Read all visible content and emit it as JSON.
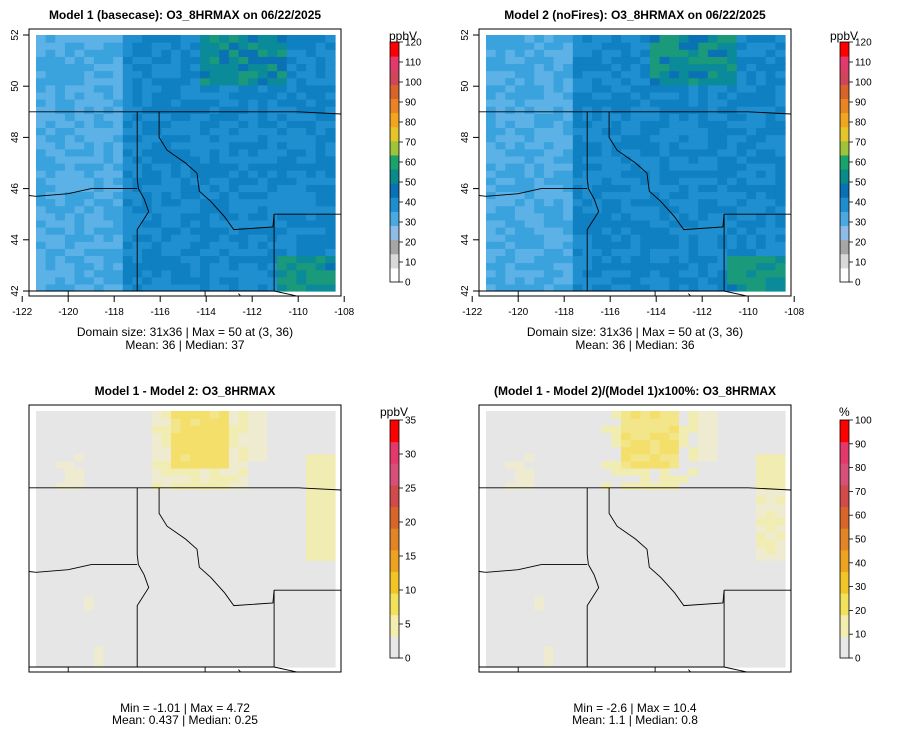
{
  "panels": [
    {
      "title": "Model 1 (basecase): O3_8HRMAX on 06/22/2025",
      "unit": "ppbV",
      "colorbar_ticks": [
        "0",
        "10",
        "20",
        "30",
        "40",
        "50",
        "60",
        "70",
        "80",
        "90",
        "100",
        "110",
        "120"
      ],
      "colorbar_max": 120,
      "colorbar_colors": [
        "#ffffff",
        "#d9d9d9",
        "#a6a6a6",
        "#8fbce6",
        "#4aa9e0",
        "#1f8ed0",
        "#0a72b4",
        "#0a8a8a",
        "#1aa36a",
        "#9dc43a",
        "#e6c52a",
        "#f2a51f",
        "#e88424",
        "#d8632b",
        "#d0455a",
        "#e23a6d",
        "#ff0000"
      ],
      "map_palette": "abs",
      "xticks": [
        "-122",
        "-120",
        "-118",
        "-116",
        "-114",
        "-112",
        "-110",
        "-108"
      ],
      "yticks": [
        "42",
        "44",
        "46",
        "48",
        "50",
        "52"
      ],
      "stats_line1": "Domain size: 31x36 | Max = 50 at (3, 36)",
      "stats_line2": "Mean: 36 |  Median: 37"
    },
    {
      "title": "Model 2 (noFires): O3_8HRMAX on 06/22/2025",
      "unit": "ppbV",
      "colorbar_ticks": [
        "0",
        "10",
        "20",
        "30",
        "40",
        "50",
        "60",
        "70",
        "80",
        "90",
        "100",
        "110",
        "120"
      ],
      "colorbar_max": 120,
      "colorbar_colors": [
        "#ffffff",
        "#d9d9d9",
        "#a6a6a6",
        "#8fbce6",
        "#4aa9e0",
        "#1f8ed0",
        "#0a72b4",
        "#0a8a8a",
        "#1aa36a",
        "#9dc43a",
        "#e6c52a",
        "#f2a51f",
        "#e88424",
        "#d8632b",
        "#d0455a",
        "#e23a6d",
        "#ff0000"
      ],
      "map_palette": "abs",
      "xticks": [
        "-122",
        "-120",
        "-118",
        "-116",
        "-114",
        "-112",
        "-110",
        "-108"
      ],
      "yticks": [
        "42",
        "44",
        "46",
        "48",
        "50",
        "52"
      ],
      "stats_line1": "Domain size: 31x36 | Max = 50 at (3, 36)",
      "stats_line2": "Mean: 36 |  Median: 36"
    },
    {
      "title": "Model 1 - Model 2: O3_8HRMAX",
      "unit": "ppbV",
      "colorbar_ticks": [
        "0",
        "5",
        "10",
        "15",
        "20",
        "25",
        "30",
        "35"
      ],
      "colorbar_max": 35,
      "colorbar_colors": [
        "#e8e8e8",
        "#f3eeb0",
        "#f2e15a",
        "#f0c525",
        "#eda31f",
        "#e38524",
        "#d8662b",
        "#d24a4a",
        "#d8507a",
        "#e4386a",
        "#ff0000"
      ],
      "map_palette": "diff",
      "xticks": [],
      "yticks": [],
      "stats_line1": "Min = -1.01 | Max = 4.72",
      "stats_line2": "Mean: 0.437 |  Median: 0.25"
    },
    {
      "title": "(Model 1 - Model 2)/(Model 1)x100%: O3_8HRMAX",
      "unit": "%",
      "colorbar_ticks": [
        "0",
        "10",
        "20",
        "30",
        "40",
        "50",
        "60",
        "70",
        "80",
        "90",
        "100"
      ],
      "colorbar_max": 100,
      "colorbar_colors": [
        "#e8e8e8",
        "#f3eeb0",
        "#f2e15a",
        "#f0c525",
        "#eda31f",
        "#e38524",
        "#d8662b",
        "#d24a4a",
        "#d8507a",
        "#e4386a",
        "#ff0000"
      ],
      "map_palette": "pct",
      "xticks": [],
      "yticks": [],
      "stats_line1": "Min = -2.6 | Max = 10.4",
      "stats_line2": "Mean: 1.1 |  Median: 0.8"
    }
  ]
}
